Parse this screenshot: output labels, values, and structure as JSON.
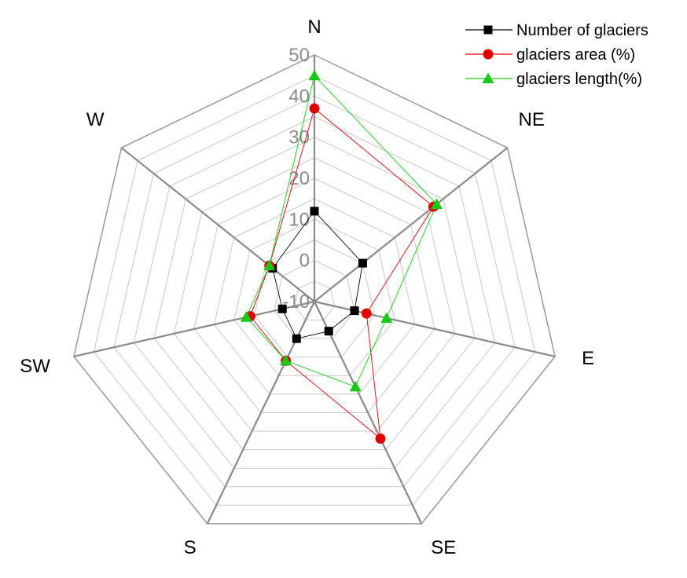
{
  "chart_data": {
    "type": "radar",
    "axes": [
      "N",
      "NE",
      "E",
      "SE",
      "S",
      "SW",
      "W"
    ],
    "rlim": [
      -10,
      50
    ],
    "ticks": [
      -10,
      0,
      10,
      20,
      30,
      40,
      50
    ],
    "tick_labels": [
      "-10",
      "0",
      "10",
      "20",
      "30",
      "40",
      "50"
    ],
    "grid": true,
    "legend_position": "top-right",
    "series": [
      {
        "name": "Number of glaciers",
        "color": "#000000",
        "marker": "square",
        "values": [
          12,
          5,
          0,
          -2,
          0,
          -2,
          3
        ]
      },
      {
        "name": "glaciers area (%)",
        "color": "#e00000",
        "marker": "circle",
        "values": [
          37,
          27,
          3,
          27,
          6,
          6,
          4
        ]
      },
      {
        "name": "glaciers length(%)",
        "color": "#19c819",
        "marker": "triangle",
        "values": [
          45,
          28,
          8,
          13,
          6,
          7,
          4
        ]
      }
    ]
  }
}
